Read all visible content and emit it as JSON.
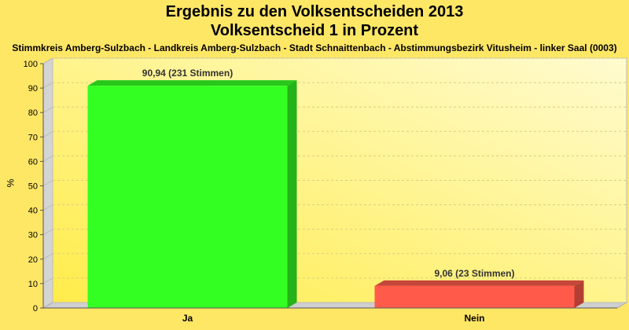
{
  "chart_data": {
    "type": "bar",
    "title": "Ergebnis zu den Volksentscheiden 2013",
    "subtitle": "Volksentscheid 1 in Prozent",
    "subtitle2": "Stimmkreis Amberg-Sulzbach - Landkreis Amberg-Sulzbach - Stadt Schnaittenbach - Abstimmungsbezirk Vitusheim - linker Saal (0003)",
    "ylabel": "%",
    "xlabel": "",
    "ylim": [
      0,
      100
    ],
    "yticks": [
      0,
      10,
      20,
      30,
      40,
      50,
      60,
      70,
      80,
      90,
      100
    ],
    "categories": [
      "Ja",
      "Nein"
    ],
    "values": [
      90.94,
      9.06
    ],
    "data_labels": [
      "90,94 (231 Stimmen)",
      "9,06 (23 Stimmen)"
    ],
    "colors": [
      "#33ff22",
      "#ff5a4a"
    ],
    "grid": true
  }
}
